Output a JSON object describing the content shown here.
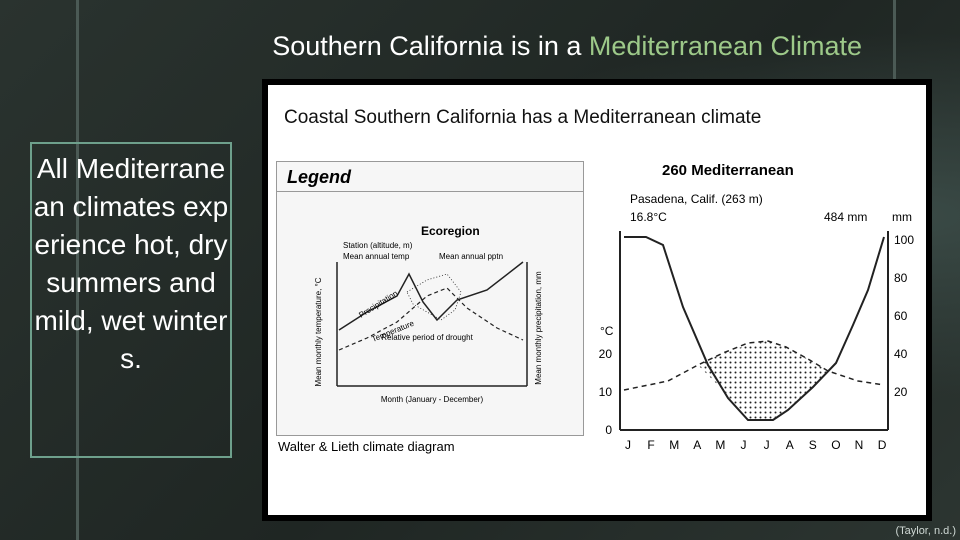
{
  "slide": {
    "title_plain": "Southern California is in a ",
    "title_accent": "Mediterranean Climate",
    "textbox": "All Mediterranean climates experience hot, dry summers and mild, wet winters.",
    "attribution": "(Taylor, n.d.)",
    "colors": {
      "accent": "#9dc989",
      "background": "#232a27",
      "box_border": "#6ea08c"
    }
  },
  "figure": {
    "heading": "Coastal Southern California has a Mediterranean climate",
    "footer": "Walter & Lieth climate diagram",
    "legend": {
      "title": "Legend",
      "ecoregion": "Ecoregion",
      "station": "Station (altitude, m)",
      "mean_temp": "Mean annual temp",
      "mean_pptn": "Mean annual pptn",
      "y_left": "Mean monthly temperature, °C",
      "y_right": "Mean monthly precipitation, mm",
      "precipitation": "Precipitation",
      "temperature": "Temperature",
      "drought": "Relative period of drought",
      "x": "Month (January - December)"
    },
    "diagram": {
      "region_title": "260 Mediterranean",
      "station": "Pasadena, Calif. (263 m)",
      "mean_temp": "16.8°C",
      "precip_total": "484 mm",
      "left_unit": "°C",
      "right_unit": "mm",
      "left_ticks": [
        "0",
        "10",
        "20"
      ],
      "right_ticks": [
        "20",
        "40",
        "60",
        "80",
        "100"
      ],
      "months": [
        "J",
        "F",
        "M",
        "A",
        "M",
        "J",
        "J",
        "A",
        "S",
        "O",
        "N",
        "D"
      ]
    }
  }
}
